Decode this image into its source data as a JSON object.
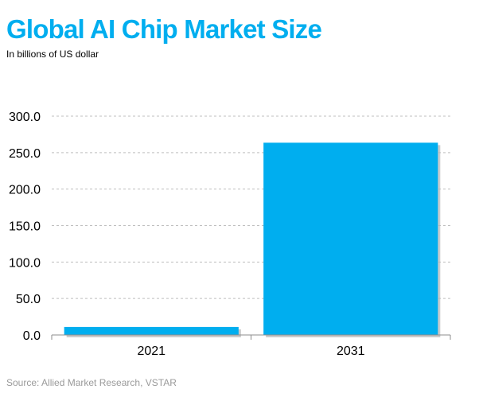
{
  "header": {
    "title": "Global AI Chip Market Size",
    "subtitle": "In billions  of US dollar"
  },
  "footer": {
    "source": "Source: Allied  Market Research, VSTAR"
  },
  "colors": {
    "title": "#00aeef",
    "bar": "#00aeef",
    "bar_shadow": "#b5b5b5",
    "grid": "#bfbfbf",
    "axis": "#8c8c8c",
    "source_text": "#9a9a9a"
  },
  "chart_data": {
    "type": "bar",
    "title": "Global AI Chip Market Size",
    "subtitle": "In billions  of US dollar",
    "categories": [
      "2021",
      "2031"
    ],
    "values": [
      11.0,
      263.6
    ],
    "ylim": [
      0,
      300
    ],
    "yticks": [
      0,
      50,
      100,
      150,
      200,
      250,
      300
    ],
    "ytick_labels": [
      "0.0",
      "50.0",
      "100.0",
      "150.0",
      "200.0",
      "250.0",
      "300.0"
    ],
    "xlabel": "",
    "ylabel": "",
    "grid": true,
    "grid_style": "dashed",
    "legend": "none"
  }
}
